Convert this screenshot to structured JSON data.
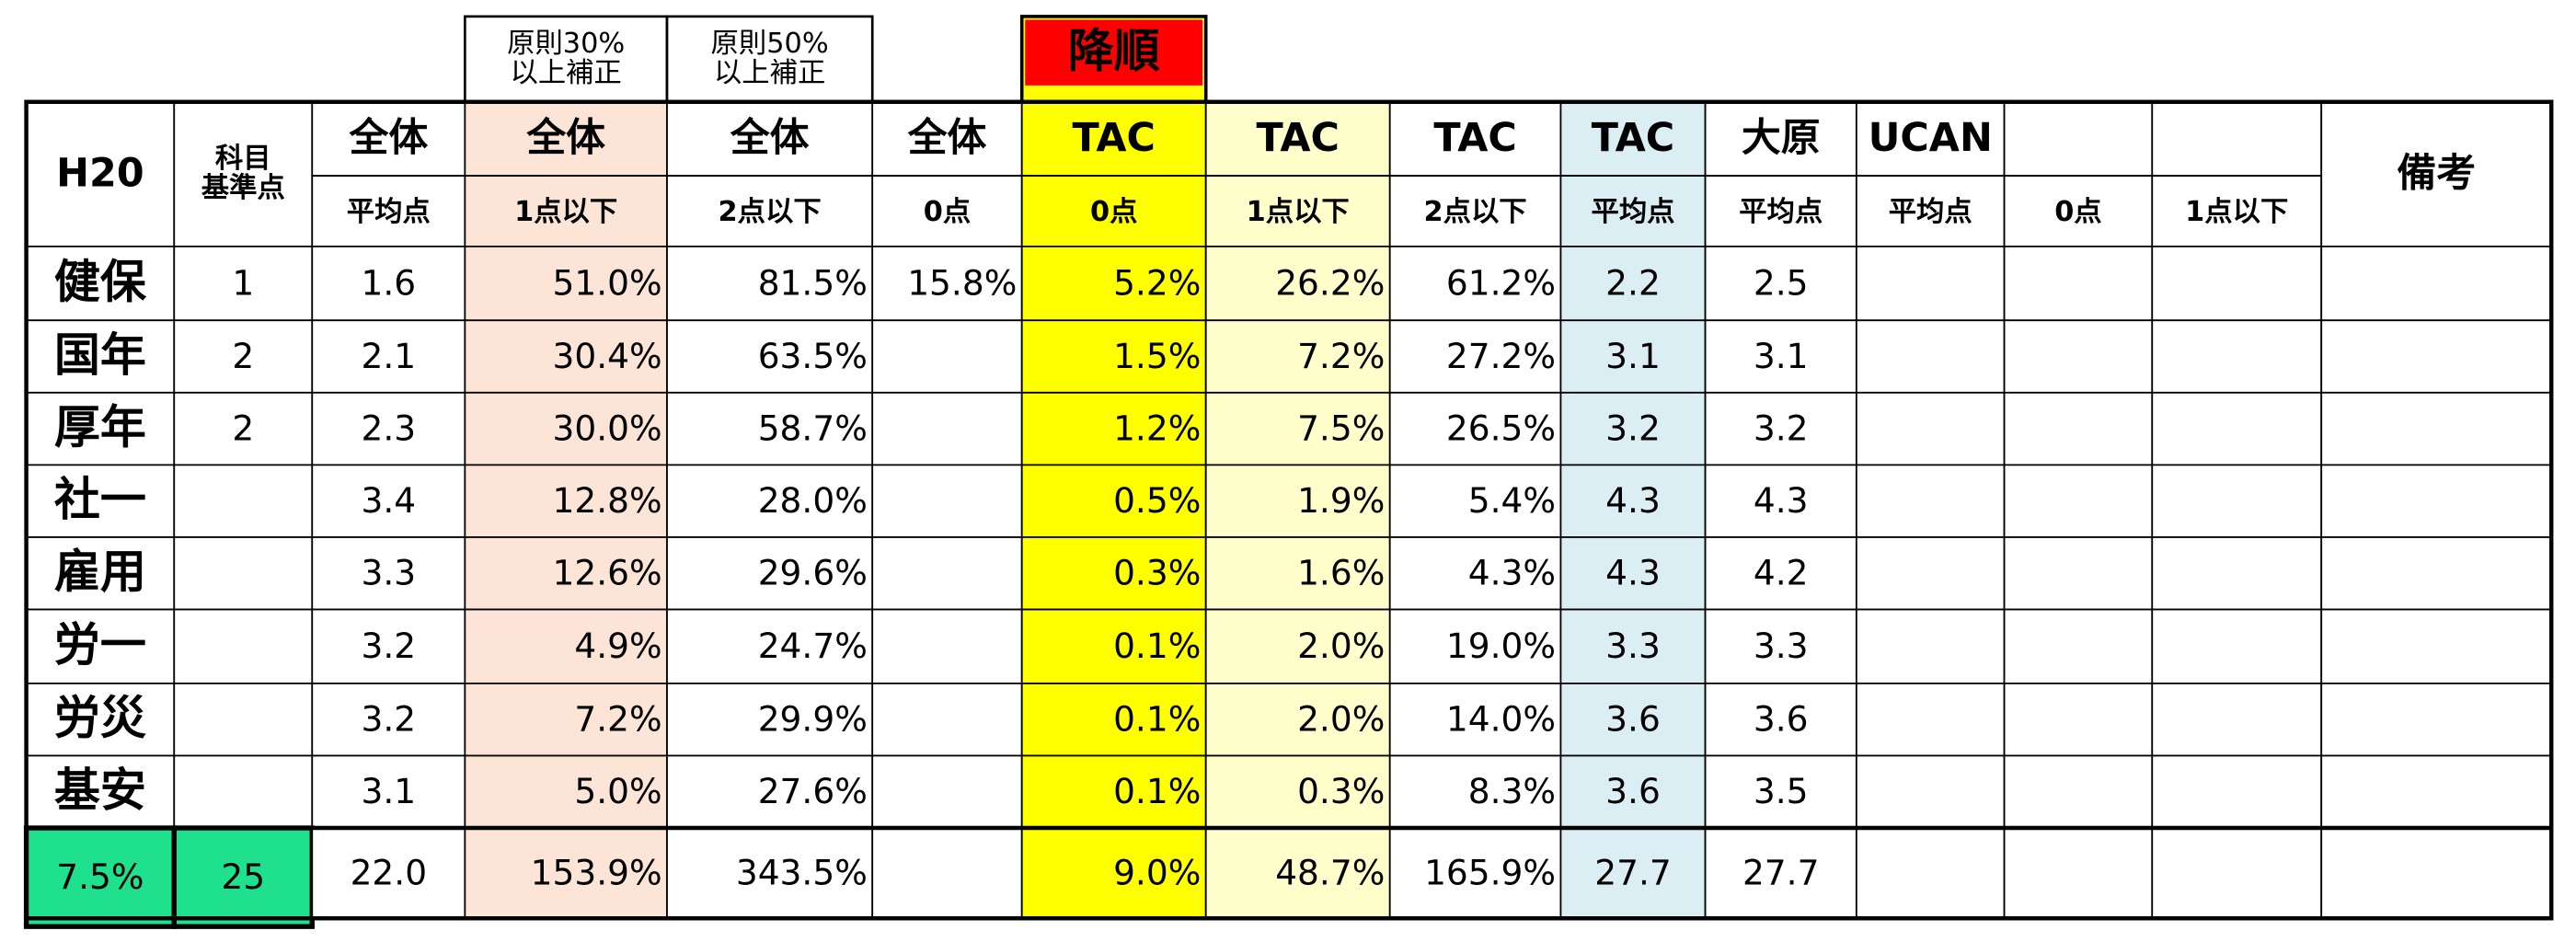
{
  "notes": {
    "col3": [
      "原則30%",
      "以上補正"
    ],
    "col4": [
      "原則50%",
      "以上補正"
    ],
    "col6": "降順"
  },
  "header": {
    "row1": [
      "H20",
      [
        "科目",
        "基準点"
      ],
      "全体",
      "全体",
      "全体",
      "全体",
      "TAC",
      "TAC",
      "TAC",
      "TAC",
      "大原",
      "UCAN",
      null,
      null,
      "備考"
    ],
    "row2": [
      null,
      null,
      "平均点",
      "1点以下",
      "2点以下",
      "0点",
      "0点",
      "1点以下",
      "2点以下",
      "平均点",
      "平均点",
      "平均点",
      "0点",
      "1点以下",
      null
    ]
  },
  "rows": [
    [
      "健保",
      "1",
      "1.6",
      {
        "text": "51.0%",
        "color": "#3333ff"
      },
      {
        "text": "81.5%",
        "color": "#3333ff"
      },
      {
        "text": "15.8%",
        "color": "#ff0000"
      },
      "5.2%",
      "26.2%",
      {
        "text": "61.2%",
        "color": "#3333ff"
      },
      "2.2",
      "2.5",
      null,
      null,
      null,
      null
    ],
    [
      "国年",
      "2",
      "2.1",
      {
        "text": "30.4%",
        "color": "#3333ff"
      },
      {
        "text": "63.5%",
        "color": "#3333ff"
      },
      null,
      "1.5%",
      "7.2%",
      "27.2%",
      "3.1",
      "3.1",
      null,
      null,
      null,
      null
    ],
    [
      "厚年",
      "2",
      "2.3",
      {
        "text": "30.0%",
        "color": "#3333ff"
      },
      {
        "text": "58.7%",
        "color": "#3333ff"
      },
      null,
      "1.2%",
      "7.5%",
      "26.5%",
      "3.2",
      "3.2",
      null,
      null,
      null,
      null
    ],
    [
      "社一",
      null,
      "3.4",
      "12.8%",
      "28.0%",
      null,
      "0.5%",
      "1.9%",
      "5.4%",
      "4.3",
      "4.3",
      null,
      null,
      null,
      null
    ],
    [
      "雇用",
      null,
      "3.3",
      "12.6%",
      "29.6%",
      null,
      "0.3%",
      "1.6%",
      "4.3%",
      "4.3",
      "4.2",
      null,
      null,
      null,
      null
    ],
    [
      "労一",
      null,
      "3.2",
      "4.9%",
      "24.7%",
      null,
      "0.1%",
      "2.0%",
      "19.0%",
      "3.3",
      "3.3",
      null,
      null,
      null,
      null
    ],
    [
      "労災",
      null,
      "3.2",
      "7.2%",
      "29.9%",
      null,
      "0.1%",
      "2.0%",
      "14.0%",
      "3.6",
      "3.6",
      null,
      null,
      null,
      null
    ],
    [
      "基安",
      null,
      "3.1",
      "5.0%",
      "27.6%",
      null,
      "0.1%",
      "0.3%",
      "8.3%",
      "3.6",
      "3.5",
      null,
      null,
      null,
      null
    ]
  ],
  "footer": [
    "7.5%",
    "25",
    "22.0",
    "153.9%",
    "343.5%",
    null,
    "9.0%",
    "48.7%",
    "165.9%",
    "27.7",
    "27.7",
    null,
    null,
    null,
    null
  ]
}
